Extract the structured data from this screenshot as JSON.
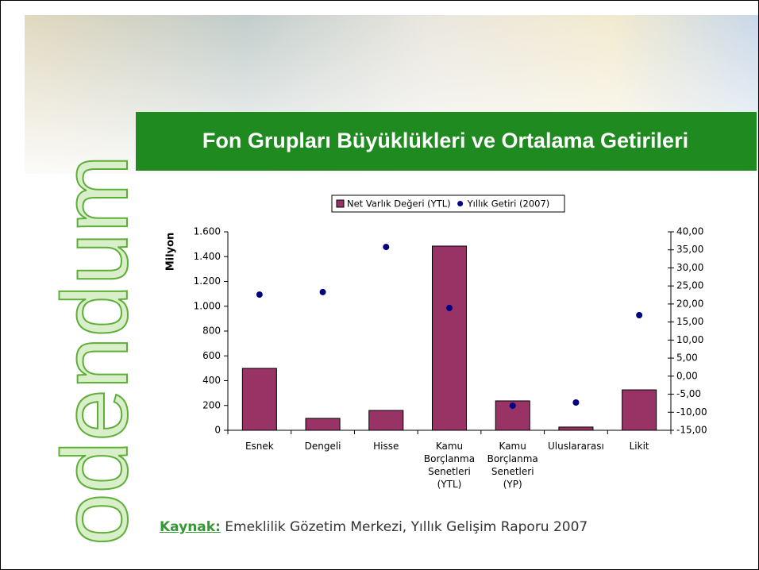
{
  "slide": {
    "title": "Fon Grupları Büyüklükleri ve Ortalama Getirileri",
    "brand": "odendum",
    "source_label": "Kaynak:",
    "source_text": "Emeklilik Gözetim Merkezi, Yıllık Gelişim Raporu 2007"
  },
  "chart_data": {
    "type": "bar",
    "ylabel": "Milyon",
    "categories": [
      "Esnek",
      "Dengeli",
      "Hisse",
      "Kamu Borçlanma Senetleri (YTL)",
      "Kamu Borçlanma Senetleri (YP)",
      "Uluslararası",
      "Likit"
    ],
    "series": [
      {
        "name": "Net Varlık Değeri (YTL)",
        "type": "bar",
        "color": "#993366",
        "values": [
          499,
          96,
          160,
          1485,
          237,
          26,
          326
        ]
      },
      {
        "name": "Yıllık Getiri (2007)",
        "type": "scatter",
        "axis": "y2",
        "color": "#000080",
        "values": [
          22.6,
          23.3,
          35.8,
          18.9,
          -8.2,
          -7.3,
          16.9
        ]
      }
    ],
    "ylim": [
      0,
      1600
    ],
    "yticks": [
      0,
      200,
      400,
      600,
      800,
      {
        "value": 1000,
        "label": "1.000"
      },
      {
        "value": 1200,
        "label": "1.200"
      },
      {
        "value": 1400,
        "label": "1.400"
      },
      {
        "value": 1600,
        "label": "1.600"
      }
    ],
    "y2lim": [
      -15,
      40
    ],
    "y2ticks": [
      {
        "value": -15,
        "label": "-15,00"
      },
      {
        "value": -10,
        "label": "-10,00"
      },
      {
        "value": -5,
        "label": "-5,00"
      },
      {
        "value": 0,
        "label": "0,00"
      },
      {
        "value": 5,
        "label": "5,00"
      },
      {
        "value": 10,
        "label": "10,00"
      },
      {
        "value": 15,
        "label": "15,00"
      },
      {
        "value": 20,
        "label": "20,00"
      },
      {
        "value": 25,
        "label": "25,00"
      },
      {
        "value": 30,
        "label": "30,00"
      },
      {
        "value": 35,
        "label": "35,00"
      },
      {
        "value": 40,
        "label": "40,00"
      }
    ],
    "legend": "top"
  }
}
